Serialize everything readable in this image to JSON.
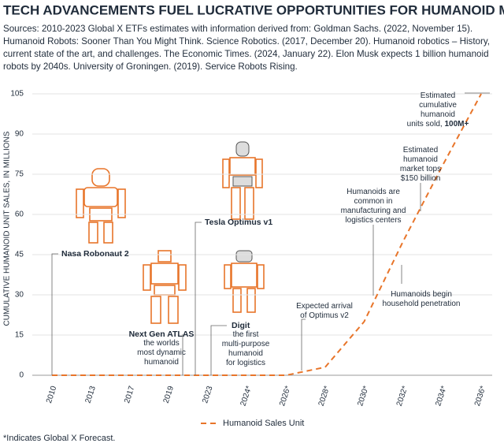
{
  "chart_data": {
    "type": "line",
    "title": "TECH ADVANCEMENTS FUEL LUCRATIVE OPPORTUNITIES FOR HUMANOID MARKET",
    "subtitle": [
      "Sources: 2010-2023 Global X ETFs estimates with information derived from: Goldman Sachs. (2022, November 15).",
      "Humanoid Robots: Sooner Than You Might Think. Science Robotics. (2017, December 20). Humanoid robotics – History,",
      "current state of the art, and challenges. The Economic Times. (2024, January 22). Elon Musk expects 1 billion humanoid",
      "robots by 2040s. University of Groningen. (2019). Service Robots Rising."
    ],
    "y_label": "CUMULATIVE HUMANOID UNIT SALES, IN MILLIONS",
    "categories": [
      "2010",
      "2013",
      "2017",
      "2019",
      "2023",
      "2024*",
      "2026*",
      "2028*",
      "2030*",
      "2032*",
      "2034*",
      "2036*"
    ],
    "series": [
      {
        "name": "Humanoid Sales Unit",
        "color": "#e8752a",
        "values": [
          0,
          0,
          0,
          0,
          0,
          0,
          0,
          3,
          20,
          50,
          78,
          105
        ]
      }
    ],
    "ylim": [
      0,
      105
    ],
    "yticks": [
      0,
      15,
      30,
      45,
      60,
      75,
      90,
      105
    ],
    "grid": true,
    "annotations": [
      {
        "title": "Nasa Robonaut 2",
        "lines": []
      },
      {
        "title": "Next Gen ATLAS",
        "lines": [
          "the worlds",
          "most dynamic",
          "humanoid"
        ]
      },
      {
        "title": "Tesla Optimus v1",
        "lines": []
      },
      {
        "title": "Digit",
        "lines": [
          "the first",
          "multi-purpose",
          "humanoid",
          "for logistics"
        ]
      },
      {
        "title": "",
        "lines": [
          "Expected arrival",
          "of Optimus v2"
        ]
      },
      {
        "title": "",
        "lines": [
          "Humanoids are",
          "common in",
          "manufacturing and",
          "logistics centers"
        ]
      },
      {
        "title": "",
        "lines": [
          "Humanoids begin",
          "household penetration"
        ]
      },
      {
        "title": "",
        "lines": [
          "Estimated",
          "humanoid",
          "market tops",
          "$150 billion"
        ]
      },
      {
        "title": "",
        "lines": [
          "Estimated",
          "cumulative",
          "humanoid",
          "units sold,"
        ],
        "bold": "100M+"
      }
    ],
    "footnote": "*Indicates Global X Forecast."
  }
}
